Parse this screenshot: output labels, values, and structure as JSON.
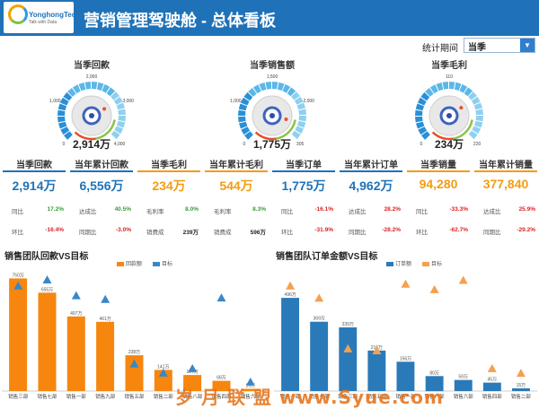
{
  "header": {
    "title": "营销管理驾驶舱 - 总体看板",
    "logo_name": "YonghongTech",
    "logo_tag": "Talk with Data"
  },
  "filter": {
    "label": "统计期间",
    "value": "当季"
  },
  "gauges": [
    {
      "title": "当季回款",
      "value_label": "2,914万",
      "ticks": [
        "0",
        "1,000",
        "2,000",
        "3,000",
        "4,000"
      ],
      "value": 2914,
      "max": 4000
    },
    {
      "title": "当季销售额",
      "value_label": "1,775万",
      "ticks": [
        "0",
        "1,000",
        "1,500",
        "2,000",
        "305"
      ],
      "value": 1775,
      "max": 2000
    },
    {
      "title": "当季毛利",
      "value_label": "234万",
      "ticks": [
        "0",
        "110",
        "220"
      ],
      "value": 234,
      "max": 330
    }
  ],
  "kpis": [
    {
      "title": "当季回款",
      "value": "2,914万",
      "color": "#1f72b8",
      "r1_label": "同比",
      "r1_val": "17.2%",
      "r1_cls": "up",
      "r2_label": "环比",
      "r2_val": "-16.4%",
      "r2_cls": "dn"
    },
    {
      "title": "当年累计回款",
      "value": "6,556万",
      "color": "#1f72b8",
      "r1_label": "达成比",
      "r1_val": "40.5%",
      "r1_cls": "up",
      "r2_label": "同期比",
      "r2_val": "-3.0%",
      "r2_cls": "dn"
    },
    {
      "title": "当季毛利",
      "value": "234万",
      "color": "#f39c12",
      "r1_label": "毛利率",
      "r1_val": "8.0%",
      "r1_cls": "up",
      "r2_label": "销费成",
      "r2_val": "239万",
      "r2_cls": "bk"
    },
    {
      "title": "当年累计毛利",
      "value": "544万",
      "color": "#f39c12",
      "r1_label": "毛利率",
      "r1_val": "8.3%",
      "r1_cls": "up",
      "r2_label": "销费成",
      "r2_val": "596万",
      "r2_cls": "bk"
    },
    {
      "title": "当季订单",
      "value": "1,775万",
      "color": "#1f72b8",
      "r1_label": "同比",
      "r1_val": "-16.1%",
      "r1_cls": "dn",
      "r2_label": "环比",
      "r2_val": "-31.9%",
      "r2_cls": "dn"
    },
    {
      "title": "当年累计订单",
      "value": "4,962万",
      "color": "#1f72b8",
      "r1_label": "达成比",
      "r1_val": "28.2%",
      "r1_cls": "dn",
      "r2_label": "同期比",
      "r2_val": "-28.2%",
      "r2_cls": "dn"
    },
    {
      "title": "当季销量",
      "value": "94,280",
      "color": "#f39c12",
      "r1_label": "同比",
      "r1_val": "-33.3%",
      "r1_cls": "dn",
      "r2_label": "环比",
      "r2_val": "-62.7%",
      "r2_cls": "dn"
    },
    {
      "title": "当年累计销量",
      "value": "377,840",
      "color": "#f39c12",
      "r1_label": "达成比",
      "r1_val": "25.9%",
      "r1_cls": "dn",
      "r2_label": "同期比",
      "r2_val": "-29.2%",
      "r2_cls": "dn"
    }
  ],
  "chart_data": [
    {
      "type": "bar",
      "title": "销售团队回款VS目标",
      "bar_color": "#f7860f",
      "target_color": "#3a87c8",
      "legend": [
        "回款额",
        "目标"
      ],
      "categories": [
        "销售三部",
        "销售七部",
        "销售一部",
        "销售九部",
        "销售五部",
        "销售二部",
        "销售八部",
        "销售四部",
        "销售六部"
      ],
      "values": [
        750,
        655,
        497,
        461,
        238,
        141,
        107,
        68,
        15
      ],
      "value_labels": [
        "750万",
        "655万",
        "497万",
        "461万",
        "238万",
        "141万",
        "107万",
        "68万",
        "15万"
      ],
      "targets": [
        700,
        740,
        635,
        610,
        180,
        120,
        150,
        620,
        60
      ],
      "ylim": [
        0,
        800
      ]
    },
    {
      "type": "bar",
      "title": "销售团队订单金额VS目标",
      "bar_color": "#2a7ab9",
      "target_color": "#f5a050",
      "legend": [
        "订单额",
        "目标"
      ],
      "categories": [
        "销售一部",
        "销售七部",
        "销售三部",
        "销售五部",
        "销售一部",
        "销售八部",
        "销售六部",
        "销售四部",
        "销售二部"
      ],
      "values": [
        496,
        369,
        339,
        216,
        156,
        80,
        59,
        45,
        15
      ],
      "value_labels": [
        "496万",
        "369万",
        "339万",
        "216万",
        "156万",
        "80万",
        "59万",
        "45万",
        "15万"
      ],
      "targets": [
        560,
        495,
        225,
        215,
        570,
        540,
        590,
        120,
        95
      ],
      "ylim": [
        0,
        640
      ]
    }
  ],
  "watermark": "岁 月 联 盟 www.Syue.com"
}
